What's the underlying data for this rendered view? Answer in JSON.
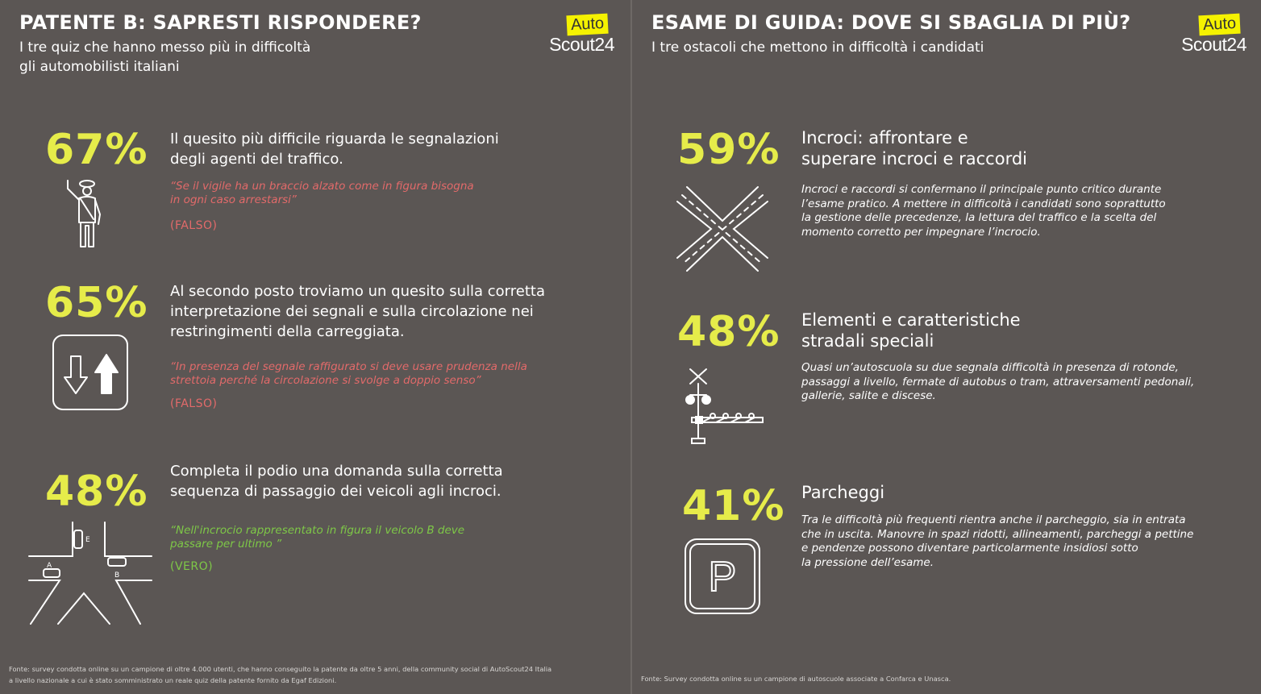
{
  "left": {
    "title": "PATENTE B: SAPRESTI RISPONDERE?",
    "subtitle_line1": "I tre quiz che hanno messo più in difficoltà",
    "subtitle_line2": "gli automobilisti italiani",
    "logo": {
      "top": "Auto",
      "bottom": "Scout24"
    },
    "items": [
      {
        "pct": "67%",
        "lead": [
          "Il quesito più difficile riguarda le segnalazioni",
          "degli agenti del traffico."
        ],
        "quote": [
          "“Se il vigile ha un braccio alzato come in figura bisogna",
          "in ogni caso arrestarsi”"
        ],
        "verdict": "(FALSO)",
        "icon": "traffic-officer-icon"
      },
      {
        "pct": "65%",
        "lead": [
          "Al secondo posto troviamo un quesito sulla corretta",
          "interpretazione dei segnali e sulla circolazione nei",
          "restringimenti della carreggiata."
        ],
        "quote": [
          "“In presenza del segnale raffigurato si deve usare prudenza nella",
          "strettoia perché la circolazione si svolge a doppio senso”"
        ],
        "verdict": "(FALSO)",
        "icon": "two-way-traffic-sign-icon"
      },
      {
        "pct": "48%",
        "lead": [
          "Completa il podio una domanda sulla corretta",
          "sequenza di passaggio dei veicoli agli incroci."
        ],
        "quote": [
          "“Nell'incrocio rappresentato in figura il veicolo B deve",
          "passare per ultimo ”"
        ],
        "verdict": "(VERO)",
        "icon": "intersection-diagram-icon",
        "diagram_labels": {
          "e": "E",
          "a": "A",
          "b": "B"
        }
      }
    ],
    "footnote_line1": "Fonte: survey condotta online su un campione di oltre 4.000 utenti, che hanno conseguito la patente da oltre 5 anni, della community social di AutoScout24 Italia",
    "footnote_line2": "a livello nazionale a cui è stato somministrato un reale quiz della patente fornito da Egaf Edizioni."
  },
  "right": {
    "title": "ESAME DI GUIDA: DOVE SI SBAGLIA DI PIÙ?",
    "subtitle": "I tre ostacoli che mettono in difficoltà i candidati",
    "logo": {
      "top": "Auto",
      "bottom": "Scout24"
    },
    "items": [
      {
        "pct": "59%",
        "lead": [
          "Incroci: affrontare e",
          "superare incroci e raccordi"
        ],
        "desc": [
          "Incroci e raccordi si confermano il principale punto critico durante",
          "l’esame pratico. A mettere in difficoltà i candidati sono soprattutto",
          "la gestione delle precedenze, la lettura del traffico e la scelta del",
          "momento corretto per impegnare l’incrocio."
        ],
        "icon": "crossroads-icon"
      },
      {
        "pct": "48%",
        "lead": [
          "Elementi e caratteristiche",
          "stradali speciali"
        ],
        "desc": [
          "Quasi un’autoscuola su due segnala difficoltà in presenza di rotonde,",
          "passaggi a livello, fermate di autobus o tram, attraversamenti pedonali,",
          "gallerie, salite e discese."
        ],
        "icon": "level-crossing-icon"
      },
      {
        "pct": "41%",
        "lead": [
          "Parcheggi"
        ],
        "desc": [
          "Tra le difficoltà più frequenti rientra anche il parcheggio, sia in entrata",
          "che in uscita. Manovre in spazi ridotti, allineamenti, parcheggi a pettine",
          "e pendenze possono diventare particolarmente insidiosi sotto",
          "la pressione dell’esame."
        ],
        "icon": "parking-sign-icon",
        "sign_letter": "P"
      }
    ],
    "footnote": "Fonte: Survey condotta online su un campione di autoscuole associate a Confarca e Unasca."
  }
}
